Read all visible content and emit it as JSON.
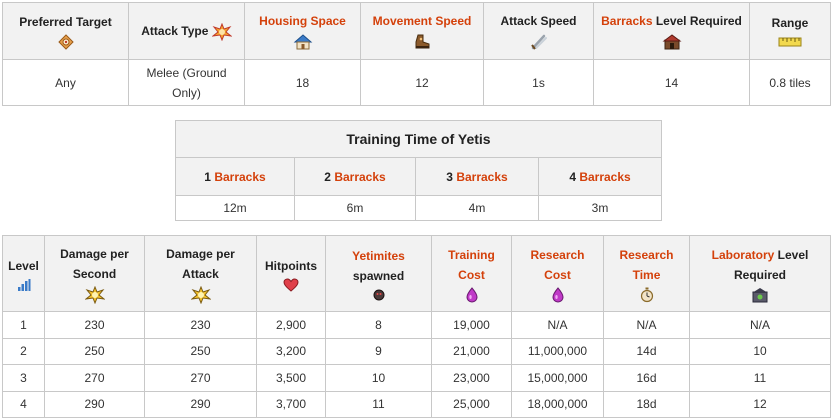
{
  "stats_table": {
    "headers": {
      "preferred_target": "Preferred Target",
      "attack_type": "Attack Type",
      "housing_space": "Housing Space",
      "movement_speed": "Movement Speed",
      "attack_speed": "Attack Speed",
      "barracks_link": "Barracks",
      "barracks_rest": " Level Required",
      "range": "Range"
    },
    "icons": {
      "preferred_target": "target-crosshair-icon",
      "attack_type": "fist-burst-icon",
      "housing_space": "house-icon",
      "movement_speed": "running-boot-icon",
      "attack_speed": "swords-icon",
      "barracks": "barracks-icon",
      "range": "ruler-icon"
    },
    "values": {
      "preferred_target": "Any",
      "attack_type_line1": "Melee (Ground",
      "attack_type_line2": "Only)",
      "housing_space": "18",
      "movement_speed": "12",
      "attack_speed": "1s",
      "barracks_level": "14",
      "range": "0.8 tiles"
    }
  },
  "training_table": {
    "title": "Training Time of Yetis",
    "columns": [
      {
        "num": "1 ",
        "link": "Barracks",
        "value": "12m"
      },
      {
        "num": "2 ",
        "link": "Barracks",
        "value": "6m"
      },
      {
        "num": "3 ",
        "link": "Barracks",
        "value": "4m"
      },
      {
        "num": "4 ",
        "link": "Barracks",
        "value": "3m"
      }
    ]
  },
  "level_table": {
    "headers": {
      "level": "Level",
      "dps_line1": "Damage per",
      "dps_line2": "Second",
      "dpa_line1": "Damage per",
      "dpa_line2": "Attack",
      "hitpoints": "Hitpoints",
      "yetimites_link": "Yetimites",
      "yetimites_rest": "spawned",
      "training_cost_line1": "Training",
      "training_cost_line2": "Cost",
      "research_cost_line1": "Research",
      "research_cost_line2": "Cost",
      "research_time_line1": "Research",
      "research_time_line2": "Time",
      "laboratory_link": "Laboratory",
      "laboratory_rest": " Level",
      "laboratory_line2": "Required"
    },
    "icons": {
      "level": "bar-chart-icon",
      "dps": "explosion-icon",
      "dpa": "explosion-icon",
      "hitpoints": "heart-icon",
      "yetimites": "yetimite-icon",
      "training_cost": "elixir-drop-icon",
      "research_cost": "elixir-drop-icon",
      "research_time": "stopwatch-icon",
      "laboratory": "laboratory-icon"
    },
    "rows": [
      {
        "level": "1",
        "dps": "230",
        "dpa": "230",
        "hp": "2,900",
        "yetimites": "8",
        "training_cost": "19,000",
        "research_cost": "N/A",
        "research_time": "N/A",
        "lab_level": "N/A"
      },
      {
        "level": "2",
        "dps": "250",
        "dpa": "250",
        "hp": "3,200",
        "yetimites": "9",
        "training_cost": "21,000",
        "research_cost": "11,000,000",
        "research_time": "14d",
        "lab_level": "10"
      },
      {
        "level": "3",
        "dps": "270",
        "dpa": "270",
        "hp": "3,500",
        "yetimites": "10",
        "training_cost": "23,000",
        "research_cost": "15,000,000",
        "research_time": "16d",
        "lab_level": "11"
      },
      {
        "level": "4",
        "dps": "290",
        "dpa": "290",
        "hp": "3,700",
        "yetimites": "11",
        "training_cost": "25,000",
        "research_cost": "18,000,000",
        "research_time": "18d",
        "lab_level": "12"
      }
    ]
  }
}
